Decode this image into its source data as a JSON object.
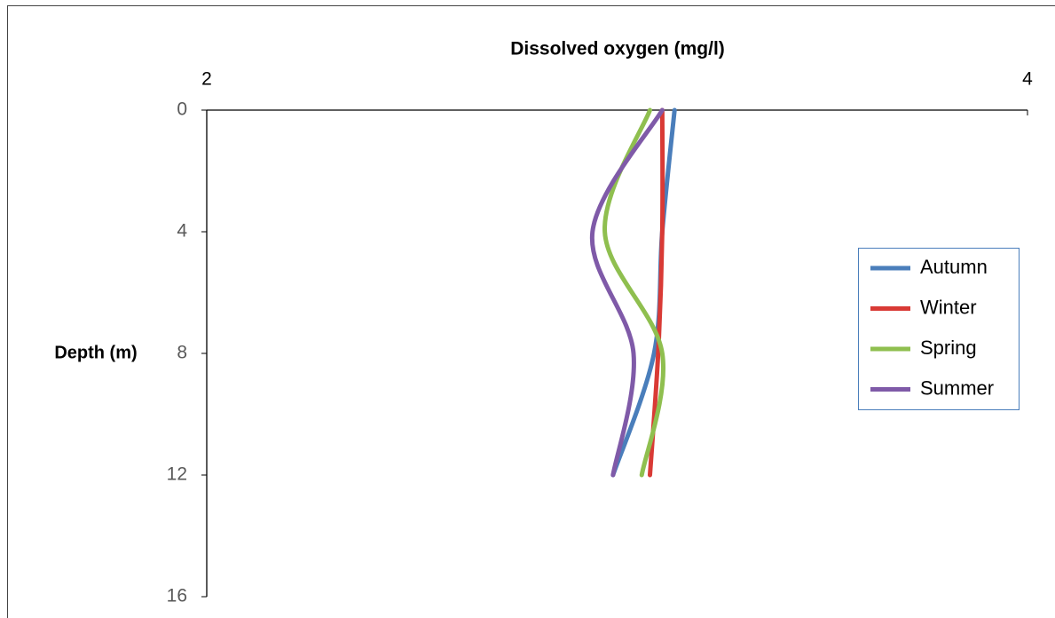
{
  "chart_data": {
    "type": "line",
    "x_label": "Dissolved oxygen (mg/l)",
    "y_label": "Depth (m)",
    "depth": [
      0,
      4,
      8,
      12
    ],
    "series": [
      {
        "name": "Autumn",
        "color": "#4a7ebb",
        "values": [
          3.14,
          3.11,
          3.09,
          2.99
        ]
      },
      {
        "name": "Winter",
        "color": "#d93a35",
        "values": [
          3.11,
          3.11,
          3.1,
          3.08
        ]
      },
      {
        "name": "Spring",
        "color": "#8fbf4f",
        "values": [
          3.08,
          2.97,
          3.11,
          3.06
        ]
      },
      {
        "name": "Summer",
        "color": "#7f5aa8",
        "values": [
          3.11,
          2.94,
          3.04,
          2.99
        ]
      }
    ],
    "xlim": [
      2,
      4
    ],
    "xticks": [
      2,
      4
    ],
    "ylim": [
      0,
      16
    ],
    "yticks": [
      0,
      4,
      8,
      12,
      16
    ],
    "y_inverted": true,
    "x_axis_top": true,
    "legend": "right"
  }
}
